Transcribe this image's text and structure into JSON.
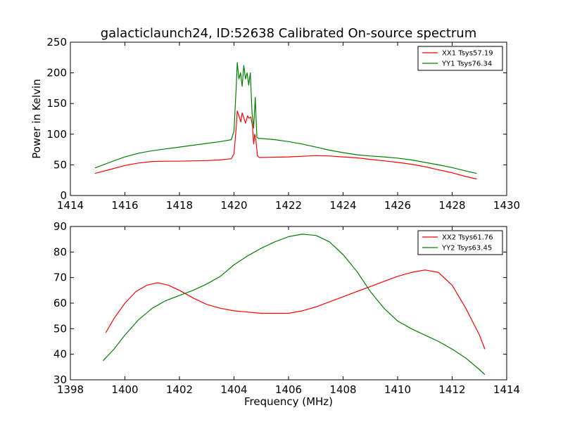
{
  "chart_data": [
    {
      "type": "line",
      "title": "galacticlaunch24, ID:52638 Calibrated On-source spectrum",
      "xlabel": "",
      "ylabel": "Power in Kelvin",
      "xlim": [
        1414,
        1430
      ],
      "ylim": [
        0,
        250
      ],
      "xticks": [
        1414,
        1416,
        1418,
        1420,
        1422,
        1424,
        1426,
        1428,
        1430
      ],
      "yticks": [
        0,
        50,
        100,
        150,
        200,
        250
      ],
      "legend": "top-right",
      "grid": false,
      "series": [
        {
          "name": "XX1 Tsys57.19",
          "color": "#ff0000",
          "x": [
            1414.9,
            1415.5,
            1416.0,
            1416.5,
            1417.0,
            1417.5,
            1418.0,
            1418.5,
            1419.0,
            1419.5,
            1419.9,
            1420.0,
            1420.08,
            1420.12,
            1420.18,
            1420.25,
            1420.3,
            1420.35,
            1420.42,
            1420.5,
            1420.55,
            1420.62,
            1420.68,
            1420.72,
            1420.76,
            1420.8,
            1420.86,
            1420.92,
            1421.0,
            1421.5,
            1422.0,
            1422.5,
            1423.0,
            1423.5,
            1424.0,
            1424.5,
            1425.0,
            1425.5,
            1426.0,
            1426.5,
            1427.0,
            1427.5,
            1428.0,
            1428.5,
            1428.9
          ],
          "values": [
            36,
            43,
            49,
            53,
            55.5,
            56,
            56,
            56.5,
            57,
            58,
            60,
            68,
            110,
            138,
            130,
            120,
            135,
            128,
            118,
            130,
            126,
            128,
            112,
            84,
            100,
            92,
            65,
            62,
            62,
            62.5,
            63,
            64,
            65,
            64.5,
            63,
            61.5,
            59,
            56.5,
            54,
            51,
            47,
            42,
            37,
            31,
            27
          ]
        },
        {
          "name": "YY1 Tsys76.34",
          "color": "#008000",
          "x": [
            1414.9,
            1415.5,
            1416.0,
            1416.5,
            1417.0,
            1417.5,
            1418.0,
            1418.5,
            1419.0,
            1419.5,
            1419.9,
            1420.0,
            1420.08,
            1420.12,
            1420.18,
            1420.24,
            1420.3,
            1420.36,
            1420.42,
            1420.48,
            1420.54,
            1420.6,
            1420.66,
            1420.72,
            1420.78,
            1420.84,
            1420.9,
            1421.0,
            1421.5,
            1422.0,
            1422.5,
            1423.0,
            1423.5,
            1424.0,
            1424.5,
            1425.0,
            1425.5,
            1426.0,
            1426.5,
            1427.0,
            1427.5,
            1428.0,
            1428.5,
            1428.9
          ],
          "values": [
            45,
            55,
            63,
            69,
            73,
            76,
            79,
            82,
            85,
            88,
            91,
            105,
            175,
            217,
            190,
            200,
            178,
            212,
            190,
            200,
            180,
            200,
            135,
            110,
            160,
            95,
            93,
            93,
            91,
            88,
            84,
            79,
            74,
            70,
            66.5,
            64.5,
            63,
            61,
            58,
            54,
            50,
            45.5,
            40,
            36
          ]
        }
      ]
    },
    {
      "type": "line",
      "title": "",
      "xlabel": "Frequency (MHz)",
      "ylabel": "",
      "xlim": [
        1398,
        1414
      ],
      "ylim": [
        30,
        90
      ],
      "xticks": [
        1398,
        1400,
        1402,
        1404,
        1406,
        1408,
        1410,
        1412,
        1414
      ],
      "yticks": [
        30,
        40,
        50,
        60,
        70,
        80,
        90
      ],
      "legend": "top-right",
      "grid": false,
      "series": [
        {
          "name": "XX2 Tsys61.76",
          "color": "#ff0000",
          "x": [
            1399.3,
            1399.6,
            1400.0,
            1400.4,
            1400.8,
            1401.2,
            1401.6,
            1402.0,
            1402.5,
            1403.0,
            1403.5,
            1404.0,
            1404.5,
            1405.0,
            1405.5,
            1406.0,
            1406.5,
            1407.0,
            1407.5,
            1408.0,
            1408.5,
            1409.0,
            1409.5,
            1410.0,
            1410.5,
            1411.0,
            1411.5,
            1412.0,
            1412.5,
            1413.0,
            1413.2
          ],
          "values": [
            48.5,
            54,
            60,
            64.5,
            67,
            68,
            67,
            65,
            62,
            59.5,
            58,
            57,
            56.5,
            56,
            56,
            56,
            57,
            58.5,
            60.5,
            62.5,
            64.5,
            66.5,
            68.5,
            70.5,
            72,
            73,
            72,
            67,
            58,
            47.5,
            42
          ]
        },
        {
          "name": "YY2 Tsys63.45",
          "color": "#008000",
          "x": [
            1399.2,
            1399.6,
            1400.0,
            1400.5,
            1401.0,
            1401.5,
            1402.0,
            1402.5,
            1403.0,
            1403.5,
            1404.0,
            1404.5,
            1405.0,
            1405.5,
            1406.0,
            1406.5,
            1407.0,
            1407.5,
            1408.0,
            1408.5,
            1409.0,
            1409.5,
            1410.0,
            1410.5,
            1411.0,
            1411.5,
            1412.0,
            1412.5,
            1413.0,
            1413.2
          ],
          "values": [
            37.5,
            42,
            47.5,
            53.5,
            58,
            61,
            63,
            65,
            67.5,
            70.5,
            75,
            78.5,
            81.5,
            84,
            86,
            87,
            86.5,
            84,
            79,
            72.5,
            64.5,
            58,
            53,
            50,
            47.5,
            45,
            42,
            38.5,
            34,
            32
          ]
        }
      ]
    }
  ]
}
